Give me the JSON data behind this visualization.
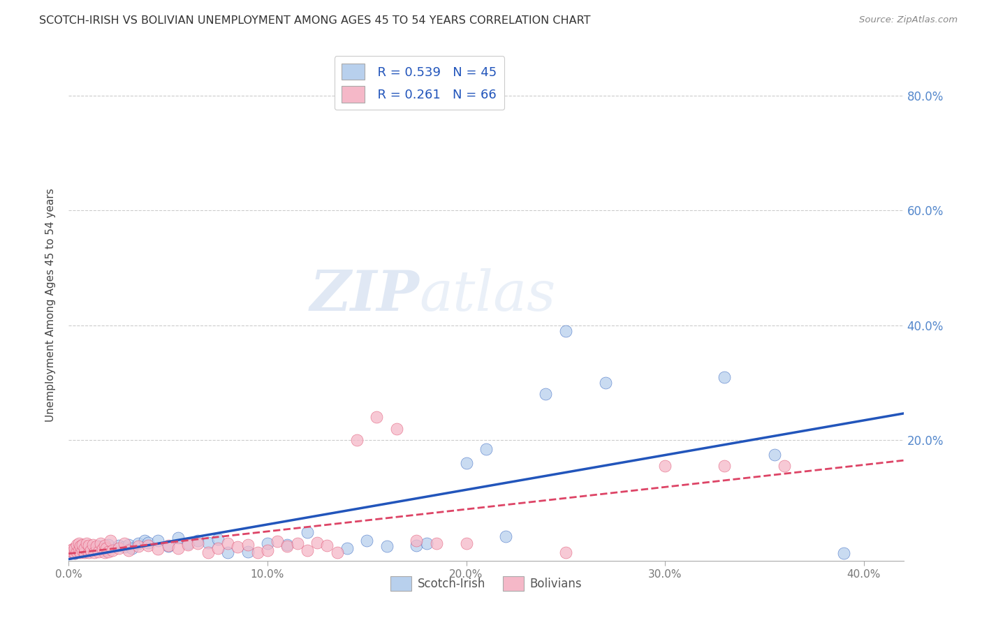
{
  "title": "SCOTCH-IRISH VS BOLIVIAN UNEMPLOYMENT AMONG AGES 45 TO 54 YEARS CORRELATION CHART",
  "source": "Source: ZipAtlas.com",
  "ylabel": "Unemployment Among Ages 45 to 54 years",
  "xlim": [
    0.0,
    0.42
  ],
  "ylim": [
    -0.01,
    0.88
  ],
  "xtick_labels": [
    "0.0%",
    "",
    "10.0%",
    "",
    "20.0%",
    "",
    "30.0%",
    "",
    "40.0%"
  ],
  "xtick_values": [
    0.0,
    0.05,
    0.1,
    0.15,
    0.2,
    0.25,
    0.3,
    0.35,
    0.4
  ],
  "ytick_labels": [
    "20.0%",
    "40.0%",
    "60.0%",
    "80.0%"
  ],
  "ytick_values": [
    0.2,
    0.4,
    0.6,
    0.8
  ],
  "background_color": "#ffffff",
  "grid_color": "#cccccc",
  "scotch_irish_color": "#b8d0ed",
  "bolivian_color": "#f5b8c8",
  "scotch_irish_line_color": "#2255bb",
  "bolivian_line_color": "#dd4466",
  "legend_R_scotch": "R = 0.539",
  "legend_N_scotch": "N = 45",
  "legend_R_bolivian": "R = 0.261",
  "legend_N_bolivian": "N = 66",
  "watermark_zip": "ZIP",
  "watermark_atlas": "atlas",
  "scotch_irish_points": [
    [
      0.001,
      0.004
    ],
    [
      0.002,
      0.006
    ],
    [
      0.003,
      0.003
    ],
    [
      0.004,
      0.008
    ],
    [
      0.005,
      0.005
    ],
    [
      0.006,
      0.01
    ],
    [
      0.008,
      0.006
    ],
    [
      0.01,
      0.007
    ],
    [
      0.012,
      0.012
    ],
    [
      0.015,
      0.015
    ],
    [
      0.018,
      0.008
    ],
    [
      0.02,
      0.018
    ],
    [
      0.025,
      0.016
    ],
    [
      0.028,
      0.014
    ],
    [
      0.03,
      0.018
    ],
    [
      0.032,
      0.012
    ],
    [
      0.035,
      0.02
    ],
    [
      0.038,
      0.025
    ],
    [
      0.04,
      0.022
    ],
    [
      0.045,
      0.025
    ],
    [
      0.05,
      0.015
    ],
    [
      0.055,
      0.03
    ],
    [
      0.06,
      0.02
    ],
    [
      0.065,
      0.025
    ],
    [
      0.07,
      0.022
    ],
    [
      0.075,
      0.028
    ],
    [
      0.08,
      0.004
    ],
    [
      0.09,
      0.006
    ],
    [
      0.1,
      0.02
    ],
    [
      0.11,
      0.018
    ],
    [
      0.12,
      0.04
    ],
    [
      0.14,
      0.012
    ],
    [
      0.15,
      0.025
    ],
    [
      0.16,
      0.015
    ],
    [
      0.175,
      0.017
    ],
    [
      0.18,
      0.02
    ],
    [
      0.2,
      0.16
    ],
    [
      0.21,
      0.185
    ],
    [
      0.22,
      0.032
    ],
    [
      0.24,
      0.28
    ],
    [
      0.25,
      0.39
    ],
    [
      0.27,
      0.3
    ],
    [
      0.33,
      0.31
    ],
    [
      0.355,
      0.175
    ],
    [
      0.39,
      0.003
    ]
  ],
  "bolivian_points": [
    [
      0.001,
      0.003
    ],
    [
      0.001,
      0.008
    ],
    [
      0.002,
      0.005
    ],
    [
      0.002,
      0.01
    ],
    [
      0.003,
      0.003
    ],
    [
      0.003,
      0.012
    ],
    [
      0.004,
      0.006
    ],
    [
      0.004,
      0.018
    ],
    [
      0.005,
      0.008
    ],
    [
      0.005,
      0.02
    ],
    [
      0.006,
      0.004
    ],
    [
      0.006,
      0.015
    ],
    [
      0.007,
      0.008
    ],
    [
      0.007,
      0.018
    ],
    [
      0.008,
      0.004
    ],
    [
      0.008,
      0.012
    ],
    [
      0.009,
      0.02
    ],
    [
      0.01,
      0.004
    ],
    [
      0.01,
      0.016
    ],
    [
      0.011,
      0.008
    ],
    [
      0.012,
      0.018
    ],
    [
      0.013,
      0.004
    ],
    [
      0.014,
      0.015
    ],
    [
      0.015,
      0.006
    ],
    [
      0.016,
      0.02
    ],
    [
      0.017,
      0.01
    ],
    [
      0.018,
      0.004
    ],
    [
      0.018,
      0.016
    ],
    [
      0.019,
      0.012
    ],
    [
      0.02,
      0.006
    ],
    [
      0.021,
      0.025
    ],
    [
      0.022,
      0.008
    ],
    [
      0.025,
      0.012
    ],
    [
      0.028,
      0.02
    ],
    [
      0.03,
      0.008
    ],
    [
      0.035,
      0.015
    ],
    [
      0.04,
      0.016
    ],
    [
      0.045,
      0.01
    ],
    [
      0.05,
      0.016
    ],
    [
      0.055,
      0.012
    ],
    [
      0.06,
      0.018
    ],
    [
      0.065,
      0.02
    ],
    [
      0.07,
      0.004
    ],
    [
      0.075,
      0.012
    ],
    [
      0.08,
      0.02
    ],
    [
      0.085,
      0.014
    ],
    [
      0.09,
      0.018
    ],
    [
      0.095,
      0.004
    ],
    [
      0.1,
      0.008
    ],
    [
      0.105,
      0.024
    ],
    [
      0.11,
      0.015
    ],
    [
      0.115,
      0.02
    ],
    [
      0.12,
      0.008
    ],
    [
      0.125,
      0.022
    ],
    [
      0.13,
      0.016
    ],
    [
      0.135,
      0.004
    ],
    [
      0.145,
      0.2
    ],
    [
      0.155,
      0.24
    ],
    [
      0.165,
      0.22
    ],
    [
      0.175,
      0.025
    ],
    [
      0.185,
      0.02
    ],
    [
      0.2,
      0.02
    ],
    [
      0.25,
      0.004
    ],
    [
      0.3,
      0.155
    ],
    [
      0.33,
      0.155
    ],
    [
      0.36,
      0.155
    ]
  ]
}
